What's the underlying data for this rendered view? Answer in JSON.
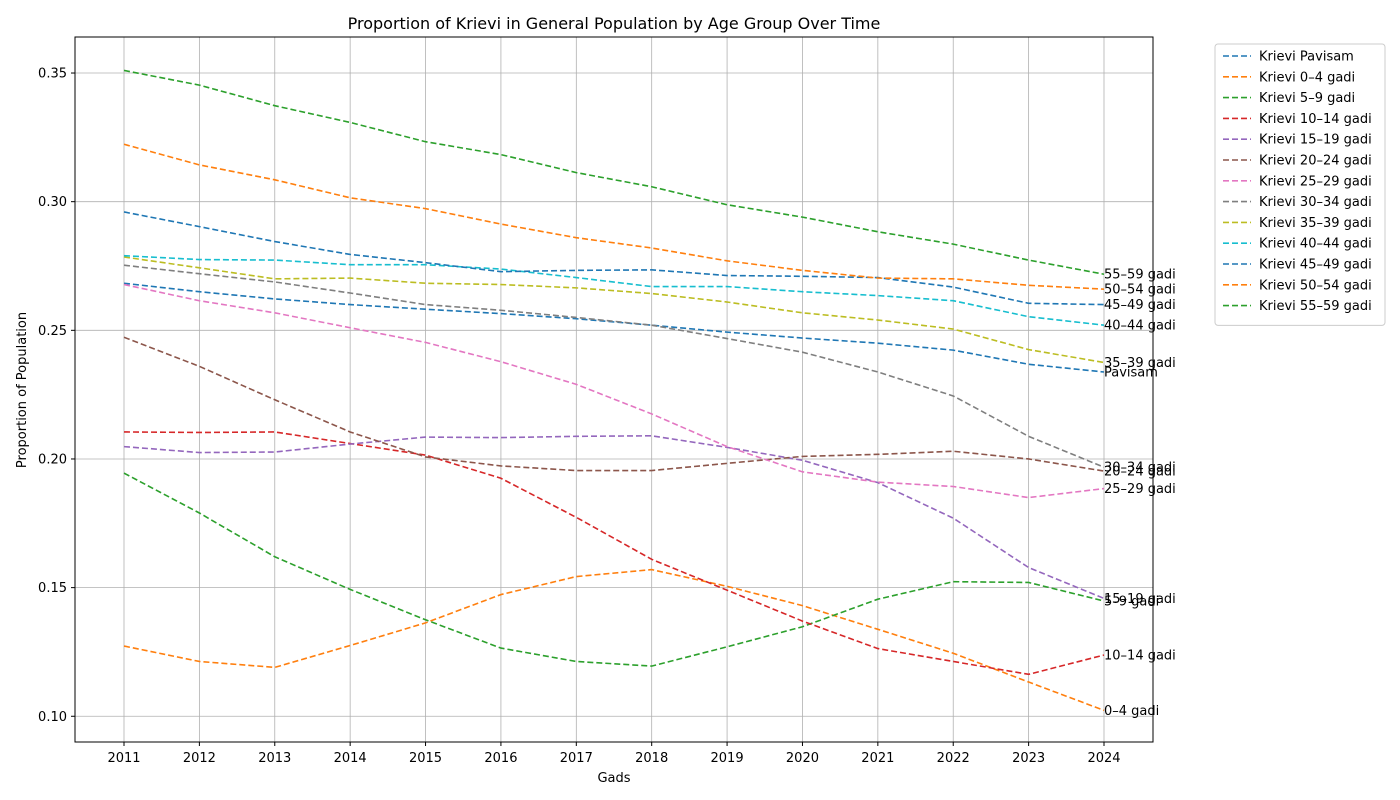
{
  "chart_data": {
    "type": "line",
    "title": "Proportion of Krievi in General Population by Age Group Over Time",
    "xlabel": "Gads",
    "ylabel": "Proportion of Population",
    "ylim": [
      0.09,
      0.364
    ],
    "yticks": [
      0.1,
      0.15,
      0.2,
      0.25,
      0.3,
      0.35
    ],
    "ytick_labels": [
      "0.10",
      "0.15",
      "0.20",
      "0.25",
      "0.30",
      "0.35"
    ],
    "x": [
      2011,
      2012,
      2013,
      2014,
      2015,
      2016,
      2017,
      2018,
      2019,
      2020,
      2021,
      2022,
      2023,
      2024
    ],
    "x_labels": [
      "2011",
      "2012",
      "2013",
      "2014",
      "2015",
      "2016",
      "2017",
      "2018",
      "2019",
      "2020",
      "2021",
      "2022",
      "2023",
      "2024"
    ],
    "grid": true,
    "line_style": "dashed",
    "legend_position": "outside-top-right",
    "series": [
      {
        "name": "Krievi Pavisam",
        "end_label": "Pavisam",
        "color": "#1f77b4",
        "values": [
          0.2683,
          0.265,
          0.2622,
          0.26,
          0.2582,
          0.2565,
          0.2545,
          0.252,
          0.2493,
          0.247,
          0.245,
          0.2423,
          0.2368,
          0.2338
        ]
      },
      {
        "name": "Krievi 0–4 gadi",
        "end_label": "0–4 gadi",
        "color": "#ff7f0e",
        "values": [
          0.1273,
          0.1213,
          0.119,
          0.1275,
          0.1363,
          0.1473,
          0.1543,
          0.157,
          0.1505,
          0.143,
          0.1338,
          0.1245,
          0.1133,
          0.1023
        ]
      },
      {
        "name": "Krievi 5–9 gadi",
        "end_label": "5–9 gadi",
        "color": "#2ca02c",
        "values": [
          0.1945,
          0.179,
          0.162,
          0.1493,
          0.1375,
          0.1265,
          0.1213,
          0.1195,
          0.127,
          0.1348,
          0.1455,
          0.1523,
          0.152,
          0.1448
        ]
      },
      {
        "name": "Krievi 10–14 gadi",
        "end_label": "10–14 gadi",
        "color": "#d62728",
        "values": [
          0.2105,
          0.2103,
          0.2105,
          0.206,
          0.2015,
          0.1925,
          0.1773,
          0.161,
          0.149,
          0.137,
          0.1263,
          0.1213,
          0.1163,
          0.1238
        ]
      },
      {
        "name": "Krievi 15–19 gadi",
        "end_label": "15–19 gadi",
        "color": "#9467bd",
        "values": [
          0.2048,
          0.2025,
          0.2027,
          0.2058,
          0.2085,
          0.2083,
          0.2088,
          0.209,
          0.2045,
          0.1995,
          0.1908,
          0.177,
          0.1578,
          0.1458
        ]
      },
      {
        "name": "Krievi 20–24 gadi",
        "end_label": "20–24 gadi",
        "color": "#8c564b",
        "values": [
          0.2473,
          0.236,
          0.223,
          0.2105,
          0.2008,
          0.1973,
          0.1955,
          0.1955,
          0.1983,
          0.201,
          0.2018,
          0.203,
          0.2,
          0.1953
        ]
      },
      {
        "name": "Krievi 25–29 gadi",
        "end_label": "25–29 gadi",
        "color": "#e377c2",
        "values": [
          0.2678,
          0.2615,
          0.2568,
          0.251,
          0.2453,
          0.2378,
          0.229,
          0.2175,
          0.2048,
          0.195,
          0.191,
          0.1893,
          0.185,
          0.1885
        ]
      },
      {
        "name": "Krievi 30–34 gadi",
        "end_label": "30–34 gadi",
        "color": "#7f7f7f",
        "values": [
          0.2753,
          0.272,
          0.2688,
          0.2645,
          0.26,
          0.2578,
          0.255,
          0.252,
          0.2468,
          0.2415,
          0.2338,
          0.2245,
          0.2088,
          0.1968
        ]
      },
      {
        "name": "Krievi 35–39 gadi",
        "end_label": "35–39 gadi",
        "color": "#bcbd22",
        "values": [
          0.2785,
          0.2743,
          0.27,
          0.2703,
          0.2683,
          0.2678,
          0.2665,
          0.2643,
          0.261,
          0.2568,
          0.254,
          0.2505,
          0.2425,
          0.2375
        ]
      },
      {
        "name": "Krievi 40–44 gadi",
        "end_label": "40–44 gadi",
        "color": "#17becf",
        "values": [
          0.279,
          0.2775,
          0.2773,
          0.2755,
          0.2755,
          0.2738,
          0.2705,
          0.267,
          0.267,
          0.265,
          0.2635,
          0.2615,
          0.2553,
          0.252
        ]
      },
      {
        "name": "Krievi 45–49 gadi",
        "end_label": "45–49 gadi",
        "color": "#1f77b4",
        "values": [
          0.296,
          0.2903,
          0.2845,
          0.2795,
          0.2763,
          0.2728,
          0.2733,
          0.2735,
          0.2713,
          0.271,
          0.2705,
          0.2668,
          0.2605,
          0.26
        ]
      },
      {
        "name": "Krievi 50–54 gadi",
        "end_label": "50–54 gadi",
        "color": "#ff7f0e",
        "values": [
          0.3223,
          0.3143,
          0.3085,
          0.3015,
          0.2973,
          0.2913,
          0.286,
          0.282,
          0.277,
          0.2733,
          0.2703,
          0.27,
          0.2675,
          0.266
        ]
      },
      {
        "name": "Krievi 55–59 gadi",
        "end_label": "55–59 gadi",
        "color": "#2ca02c",
        "values": [
          0.351,
          0.3453,
          0.3373,
          0.3308,
          0.3233,
          0.3183,
          0.3113,
          0.3058,
          0.2988,
          0.294,
          0.2883,
          0.2835,
          0.2773,
          0.2718
        ]
      }
    ]
  }
}
